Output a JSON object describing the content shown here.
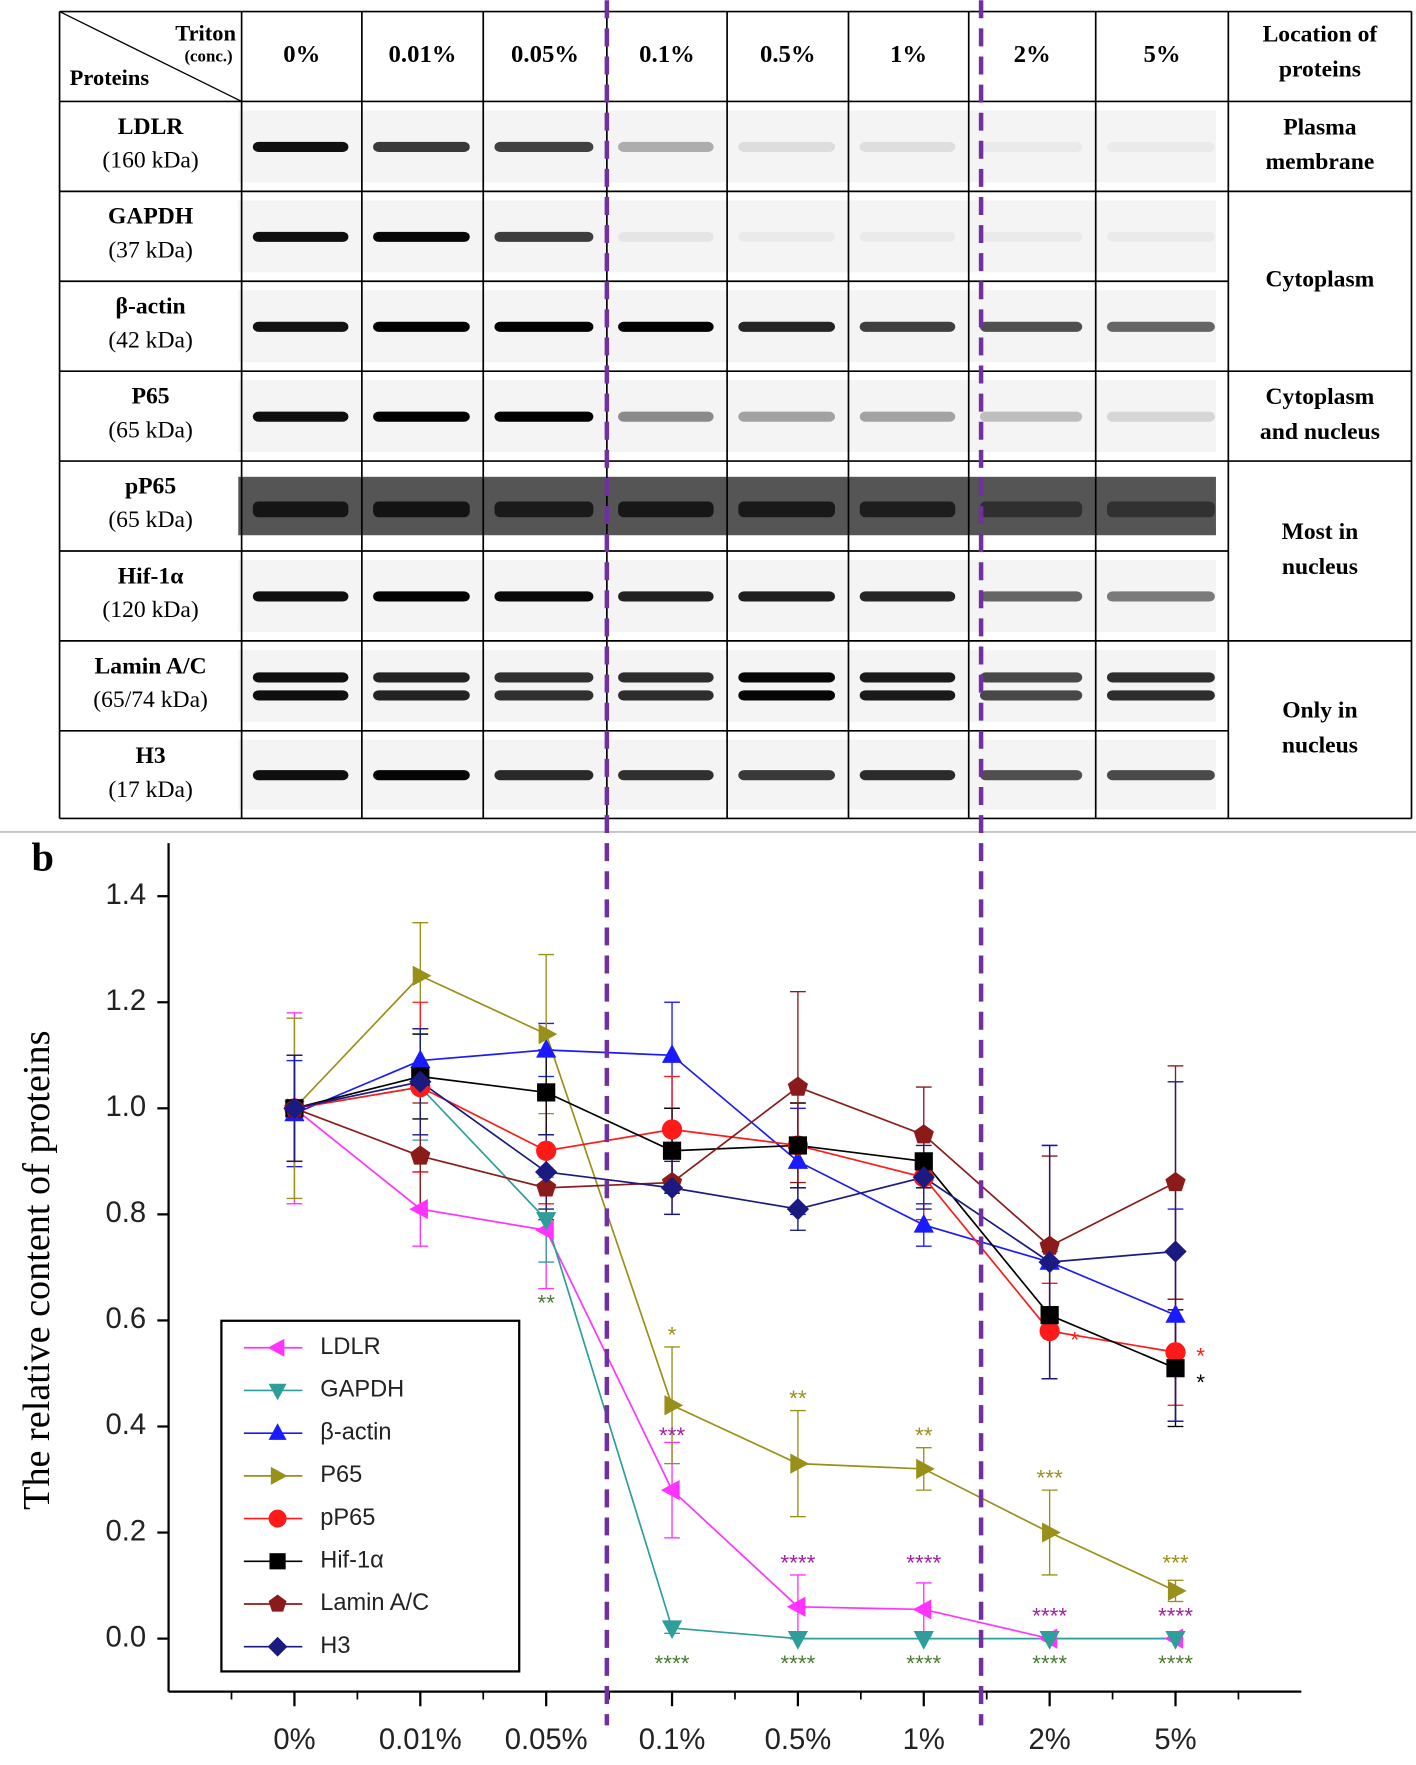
{
  "panel_a": {
    "corner_top": "Triton",
    "corner_sub": "(conc.)",
    "corner_bottom": "Proteins",
    "location_header": [
      "Location of",
      "proteins"
    ],
    "sizes": [
      "(160 kDa)",
      "(37 kDa)",
      "(42 kDa)",
      "(65 kDa)",
      "(65 kDa)",
      "(120 kDa)",
      "(65/74 kDa)",
      "(17 kDa)"
    ],
    "locations": [
      {
        "lines": [
          "Plasma",
          "membrane"
        ],
        "rows": [
          0
        ]
      },
      {
        "lines": [
          "Cytoplasm"
        ],
        "rows": [
          1,
          2
        ]
      },
      {
        "lines": [
          "Cytoplasm",
          "and nucleus"
        ],
        "rows": [
          3
        ]
      },
      {
        "lines": [
          "Most in",
          "nucleus"
        ],
        "rows": [
          4,
          5
        ]
      },
      {
        "lines": [
          "Only in",
          "nucleus"
        ],
        "rows": [
          6,
          7
        ]
      }
    ]
  },
  "chart_data": {
    "type": "line",
    "panel_label": "b",
    "y_label": "The relative content of proteins",
    "categories": [
      "0%",
      "0.01%",
      "0.05%",
      "0.1%",
      "0.5%",
      "1%",
      "2%",
      "5%"
    ],
    "ylim": [
      -0.1,
      1.5
    ],
    "yticks": [
      {
        "value": 0,
        "label": "0.0"
      },
      0.2,
      0.4,
      0.6,
      0.8,
      {
        "value": 1,
        "label": "1.0"
      },
      1.2,
      1.4
    ],
    "legend": "lower left",
    "series": [
      {
        "name": "LDLR",
        "color": "#ff33ff",
        "marker": "triangle-left",
        "values": [
          1.0,
          0.81,
          0.77,
          0.28,
          0.06,
          0.055,
          0.0,
          0.0
        ],
        "errors": [
          0.18,
          0.07,
          0.11,
          0.09,
          0.06,
          0.05,
          0.0,
          0.0
        ]
      },
      {
        "name": "GAPDH",
        "color": "#2e9e9a",
        "marker": "triangle-down",
        "values": [
          1.0,
          1.04,
          0.79,
          0.02,
          0.0,
          0.0,
          0.0,
          0.0
        ],
        "errors": [
          0.1,
          0.1,
          0.08,
          0.01,
          0.0,
          0.0,
          0.0,
          0.0
        ]
      },
      {
        "name": "β-actin",
        "color": "#1a1aff",
        "marker": "triangle-up",
        "values": [
          0.99,
          1.09,
          1.11,
          1.1,
          0.9,
          0.78,
          0.71,
          0.61
        ],
        "errors": [
          0.1,
          0.06,
          0.05,
          0.1,
          0.1,
          0.04,
          0.22,
          0.2
        ]
      },
      {
        "name": "P65",
        "color": "#99901a",
        "marker": "triangle-right",
        "values": [
          1.0,
          1.25,
          1.14,
          0.44,
          0.33,
          0.32,
          0.2,
          0.09
        ],
        "errors": [
          0.17,
          0.1,
          0.15,
          0.11,
          0.1,
          0.04,
          0.08,
          0.02
        ]
      },
      {
        "name": "pP65",
        "color": "#ff1a1a",
        "marker": "circle",
        "values": [
          1.0,
          1.04,
          0.92,
          0.96,
          0.93,
          0.87,
          0.58,
          0.54
        ],
        "errors": [
          0.1,
          0.16,
          0.1,
          0.1,
          0.08,
          0.08,
          0.09,
          0.1
        ]
      },
      {
        "name": "Hif-1α",
        "color": "#000000",
        "marker": "square",
        "values": [
          1.0,
          1.06,
          1.03,
          0.92,
          0.93,
          0.9,
          0.61,
          0.51
        ],
        "errors": [
          0.1,
          0.08,
          0.08,
          0.08,
          0.08,
          0.05,
          0.12,
          0.11
        ]
      },
      {
        "name": "Lamin A/C",
        "color": "#8b1a1a",
        "marker": "pentagon",
        "values": [
          1.0,
          0.91,
          0.85,
          0.86,
          1.04,
          0.95,
          0.74,
          0.86
        ],
        "errors": [
          0.1,
          0.1,
          0.06,
          0.06,
          0.18,
          0.09,
          0.17,
          0.22
        ]
      },
      {
        "name": "H3",
        "color": "#1a1a80",
        "marker": "diamond",
        "values": [
          1.0,
          1.05,
          0.88,
          0.85,
          0.81,
          0.87,
          0.71,
          0.73
        ],
        "errors": [
          0.1,
          0.1,
          0.07,
          0.05,
          0.04,
          0.06,
          0.22,
          0.32
        ]
      }
    ],
    "annotations": [
      {
        "text": "**",
        "category": 2,
        "y": 0.63,
        "color": "#4a7a30"
      },
      {
        "text": "****",
        "category": 3,
        "y": -0.05,
        "color": "#4a7a30"
      },
      {
        "text": "****",
        "category": 4,
        "y": -0.05,
        "color": "#4a7a30"
      },
      {
        "text": "****",
        "category": 5,
        "y": -0.05,
        "color": "#4a7a30"
      },
      {
        "text": "****",
        "category": 6,
        "y": -0.05,
        "color": "#4a7a30"
      },
      {
        "text": "****",
        "category": 7,
        "y": -0.05,
        "color": "#4a7a30"
      },
      {
        "text": "*",
        "category": 3,
        "y": 0.57,
        "color": "#99901a"
      },
      {
        "text": "**",
        "category": 4,
        "y": 0.45,
        "color": "#99901a"
      },
      {
        "text": "**",
        "category": 5,
        "y": 0.38,
        "color": "#99901a"
      },
      {
        "text": "***",
        "category": 6,
        "y": 0.3,
        "color": "#99901a"
      },
      {
        "text": "***",
        "category": 7,
        "y": 0.14,
        "color": "#99901a"
      },
      {
        "text": "***",
        "category": 3,
        "y": 0.38,
        "color": "#a020a0"
      },
      {
        "text": "****",
        "category": 4,
        "y": 0.14,
        "color": "#a020a0"
      },
      {
        "text": "****",
        "category": 5,
        "y": 0.14,
        "color": "#a020a0"
      },
      {
        "text": "****",
        "category": 6,
        "y": 0.04,
        "color": "#a020a0"
      },
      {
        "text": "****",
        "category": 7,
        "y": 0.04,
        "color": "#a020a0"
      },
      {
        "text": "*",
        "category": 6.2,
        "y": 0.56,
        "color": "#ff1a1a"
      },
      {
        "text": "*",
        "category": 7.2,
        "y": 0.53,
        "color": "#ff1a1a"
      },
      {
        "text": "*",
        "category": 7.2,
        "y": 0.48,
        "color": "#000000"
      }
    ]
  }
}
